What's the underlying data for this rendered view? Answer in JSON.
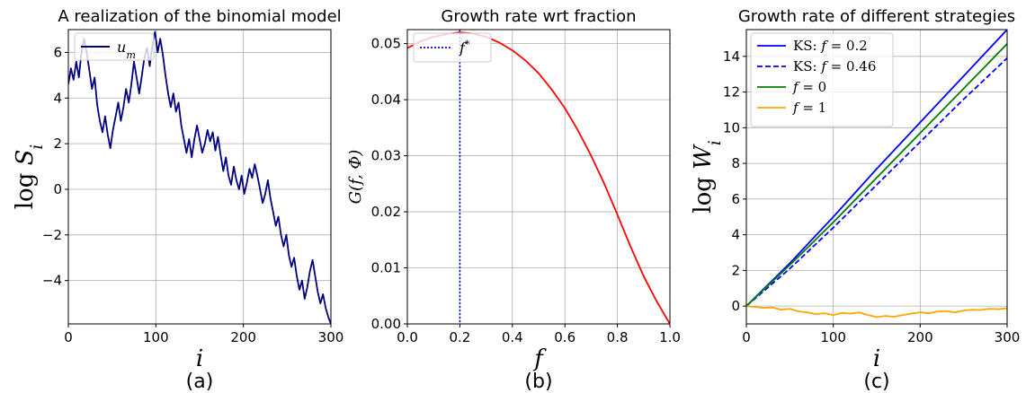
{
  "chart_data": [
    {
      "id": "a",
      "type": "line",
      "title": "A realization of the binomial model",
      "xlabel": "i",
      "ylabel": "log S_i",
      "caption": "(a)",
      "xlim": [
        0,
        300
      ],
      "ylim": [
        -5.9,
        7.0
      ],
      "xticks": [
        0,
        100,
        200,
        300
      ],
      "yticks": [
        -4,
        -2,
        0,
        2,
        4,
        6
      ],
      "grid": true,
      "legend_position": "top-left",
      "series": [
        {
          "name": "u_m",
          "color": "#000080",
          "x": [
            0,
            3,
            6,
            9,
            12,
            15,
            18,
            21,
            24,
            27,
            30,
            33,
            36,
            39,
            42,
            45,
            48,
            51,
            54,
            57,
            60,
            63,
            66,
            69,
            72,
            75,
            78,
            81,
            84,
            87,
            90,
            93,
            96,
            99,
            102,
            105,
            108,
            111,
            114,
            117,
            120,
            123,
            126,
            129,
            132,
            135,
            138,
            141,
            144,
            147,
            150,
            153,
            156,
            159,
            162,
            165,
            168,
            171,
            174,
            177,
            180,
            183,
            186,
            189,
            192,
            195,
            198,
            201,
            204,
            207,
            210,
            213,
            216,
            219,
            222,
            225,
            228,
            231,
            234,
            237,
            240,
            243,
            246,
            249,
            252,
            255,
            258,
            261,
            264,
            267,
            270,
            273,
            276,
            279,
            282,
            285,
            288,
            291,
            294,
            297,
            300
          ],
          "values": [
            4.6,
            5.3,
            4.8,
            5.6,
            4.9,
            6.0,
            6.6,
            6.0,
            5.2,
            4.4,
            4.9,
            3.7,
            3.0,
            2.5,
            3.2,
            2.4,
            1.8,
            2.6,
            3.2,
            3.8,
            3.0,
            3.6,
            4.4,
            3.8,
            4.6,
            5.6,
            4.9,
            4.2,
            5.0,
            5.8,
            6.2,
            5.4,
            6.3,
            6.9,
            6.0,
            6.6,
            5.9,
            5.0,
            4.2,
            3.6,
            4.2,
            3.4,
            3.8,
            2.8,
            2.2,
            1.6,
            2.2,
            1.4,
            2.2,
            2.8,
            2.2,
            1.6,
            2.0,
            2.6,
            2.1,
            2.5,
            1.7,
            2.3,
            1.5,
            0.8,
            1.4,
            0.6,
            0.2,
            1.0,
            0.4,
            0.0,
            0.6,
            -0.2,
            0.3,
            0.9,
            0.5,
            1.1,
            0.6,
            0.0,
            -0.6,
            -0.2,
            0.4,
            -0.4,
            -1.0,
            -1.6,
            -1.2,
            -2.0,
            -2.5,
            -2.0,
            -2.9,
            -3.4,
            -3.0,
            -3.8,
            -4.4,
            -4.0,
            -4.8,
            -4.3,
            -3.6,
            -3.1,
            -3.8,
            -4.5,
            -5.0,
            -4.6,
            -5.2,
            -5.6,
            -5.9
          ]
        }
      ]
    },
    {
      "id": "b",
      "type": "line",
      "title": "Growth rate wrt fraction",
      "xlabel": "f",
      "ylabel": "G(f, Φ)",
      "caption": "(b)",
      "xlim": [
        0.0,
        1.0
      ],
      "ylim": [
        0.0,
        0.0525
      ],
      "xticks": [
        0.0,
        0.2,
        0.4,
        0.6,
        0.8,
        1.0
      ],
      "yticks": [
        0.0,
        0.01,
        0.02,
        0.03,
        0.04,
        0.05
      ],
      "grid": true,
      "legend_position": "top-left",
      "series": [
        {
          "name": "",
          "color": "#ff0000",
          "x": [
            0.0,
            0.05,
            0.1,
            0.15,
            0.2,
            0.25,
            0.3,
            0.35,
            0.4,
            0.45,
            0.5,
            0.55,
            0.6,
            0.65,
            0.7,
            0.75,
            0.8,
            0.85,
            0.9,
            0.95,
            1.0
          ],
          "values": [
            0.0492,
            0.0504,
            0.0512,
            0.0517,
            0.052,
            0.0518,
            0.0512,
            0.0502,
            0.0488,
            0.047,
            0.0447,
            0.0418,
            0.0385,
            0.0345,
            0.03,
            0.025,
            0.0195,
            0.0138,
            0.0085,
            0.004,
            0.0
          ]
        }
      ],
      "vlines": [
        {
          "name": "f*",
          "x": 0.2,
          "color": "#0000ff",
          "style": "dotted"
        }
      ]
    },
    {
      "id": "c",
      "type": "line",
      "title": "Growth rate of different strategies",
      "xlabel": "i",
      "ylabel": "log W_i",
      "caption": "(c)",
      "xlim": [
        0,
        300
      ],
      "ylim": [
        -1.0,
        15.5
      ],
      "xticks": [
        0,
        100,
        200,
        300
      ],
      "yticks": [
        0,
        2,
        4,
        6,
        8,
        10,
        12,
        14
      ],
      "grid": true,
      "legend_position": "top-left",
      "series": [
        {
          "name": "KS: f = 0.2",
          "color": "#0000ff",
          "style": "solid",
          "x": [
            0,
            50,
            100,
            150,
            200,
            250,
            300
          ],
          "values": [
            0.0,
            2.4,
            5.0,
            7.7,
            10.3,
            12.9,
            15.5
          ]
        },
        {
          "name": "KS: f = 0.46",
          "color": "#0000ff",
          "style": "dashed",
          "x": [
            0,
            50,
            100,
            150,
            200,
            250,
            300
          ],
          "values": [
            0.0,
            2.1,
            4.4,
            6.8,
            9.2,
            11.6,
            13.9
          ]
        },
        {
          "name": "f = 0",
          "color": "#008000",
          "style": "solid",
          "x": [
            0,
            50,
            100,
            150,
            200,
            250,
            300
          ],
          "values": [
            0.0,
            2.3,
            4.7,
            7.2,
            9.7,
            12.2,
            14.7
          ]
        },
        {
          "name": "f = 1",
          "color": "#ffa500",
          "style": "solid",
          "x": [
            0,
            10,
            20,
            30,
            40,
            50,
            60,
            70,
            80,
            90,
            100,
            110,
            120,
            130,
            140,
            150,
            160,
            170,
            180,
            190,
            200,
            210,
            220,
            230,
            240,
            250,
            260,
            270,
            280,
            290,
            300
          ],
          "values": [
            0.0,
            -0.05,
            -0.1,
            -0.08,
            -0.2,
            -0.15,
            -0.3,
            -0.35,
            -0.45,
            -0.4,
            -0.5,
            -0.38,
            -0.42,
            -0.35,
            -0.5,
            -0.62,
            -0.55,
            -0.6,
            -0.5,
            -0.42,
            -0.35,
            -0.4,
            -0.3,
            -0.28,
            -0.35,
            -0.25,
            -0.2,
            -0.22,
            -0.15,
            -0.18,
            -0.12
          ]
        }
      ]
    }
  ],
  "legend_labels": {
    "a": [
      "u_m"
    ],
    "b": [
      "f*"
    ],
    "c": [
      "KS: f = 0.2",
      "KS: f = 0.46",
      "f = 0",
      "f = 1"
    ]
  }
}
